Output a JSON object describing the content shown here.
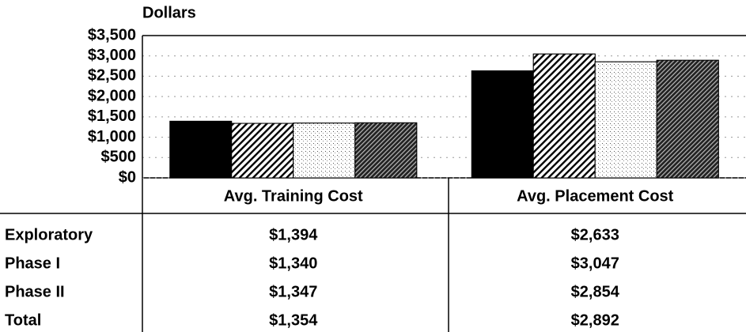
{
  "chart_data": {
    "type": "bar",
    "y_label": "Dollars",
    "categories": [
      "Avg. Training Cost",
      "Avg. Placement Cost"
    ],
    "series": [
      {
        "name": "Exploratory",
        "color": "#000000",
        "values": [
          1394,
          2633
        ],
        "value_labels": [
          "$1,394",
          "$2,633"
        ]
      },
      {
        "name": "Phase I",
        "color": "#8a8a8a",
        "values": [
          1340,
          3047
        ],
        "value_labels": [
          "$1,340",
          "$3,047"
        ]
      },
      {
        "name": "Phase II",
        "color": "#e4e4e4",
        "values": [
          1347,
          2854
        ],
        "value_labels": [
          "$1,347",
          "$2,854"
        ]
      },
      {
        "name": "Total",
        "color": "#3a3a3a",
        "values": [
          1354,
          2892
        ],
        "value_labels": [
          "$1,354",
          "$2,892"
        ]
      }
    ],
    "ylim": [
      0,
      3500
    ],
    "yticks": [
      {
        "value": 0,
        "label": "$0"
      },
      {
        "value": 500,
        "label": "$500"
      },
      {
        "value": 1000,
        "label": "$1,000"
      },
      {
        "value": 1500,
        "label": "$1,500"
      },
      {
        "value": 2000,
        "label": "$2,000"
      },
      {
        "value": 2500,
        "label": "$2,500"
      },
      {
        "value": 3000,
        "label": "$3,000"
      },
      {
        "value": 3500,
        "label": "$3,500"
      }
    ],
    "grid": true
  }
}
